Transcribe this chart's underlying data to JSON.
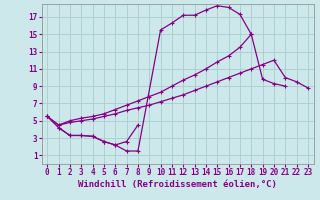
{
  "background_color": "#cce8ea",
  "grid_color": "#aacccc",
  "line_color": "#880088",
  "markersize": 2.5,
  "linewidth": 0.9,
  "xlabel": "Windchill (Refroidissement éolien,°C)",
  "xlabel_fontsize": 6.5,
  "tick_fontsize": 5.5,
  "xlim": [
    -0.5,
    23.5
  ],
  "ylim": [
    0,
    18.5
  ],
  "xticks": [
    0,
    1,
    2,
    3,
    4,
    5,
    6,
    7,
    8,
    9,
    10,
    11,
    12,
    13,
    14,
    15,
    16,
    17,
    18,
    19,
    20,
    21,
    22,
    23
  ],
  "yticks": [
    1,
    3,
    5,
    7,
    9,
    11,
    13,
    15,
    17
  ],
  "curve1_x": [
    0,
    1,
    2,
    3,
    4,
    5,
    6,
    7,
    8,
    10,
    11,
    12,
    13,
    14,
    15,
    16,
    17,
    18
  ],
  "curve1_y": [
    5.5,
    4.2,
    3.3,
    3.3,
    3.2,
    2.6,
    2.2,
    1.5,
    1.5,
    15.5,
    16.3,
    17.2,
    17.2,
    17.8,
    18.3,
    18.1,
    17.3,
    15.0
  ],
  "curve2_x": [
    1,
    2,
    3,
    4,
    5,
    6,
    7,
    8
  ],
  "curve2_y": [
    4.2,
    3.3,
    3.3,
    3.2,
    2.6,
    2.2,
    2.6,
    4.5
  ],
  "curve3_x": [
    0,
    1,
    2,
    3,
    4,
    5,
    6,
    7,
    8,
    9,
    10,
    11,
    12,
    13,
    14,
    15,
    16,
    17,
    18,
    19,
    20,
    21,
    22,
    23
  ],
  "curve3_y": [
    5.5,
    4.5,
    4.8,
    5.0,
    5.2,
    5.5,
    5.8,
    6.2,
    6.5,
    6.8,
    7.2,
    7.6,
    8.0,
    8.5,
    9.0,
    9.5,
    10.0,
    10.5,
    11.0,
    11.5,
    12.0,
    10.0,
    9.5,
    8.8
  ],
  "curve4_x": [
    0,
    1,
    2,
    3,
    4,
    5,
    6,
    7,
    8,
    9,
    10,
    11,
    12,
    13,
    14,
    15,
    16,
    17,
    18,
    19,
    20,
    21
  ],
  "curve4_y": [
    5.5,
    4.5,
    5.0,
    5.3,
    5.5,
    5.8,
    6.3,
    6.8,
    7.3,
    7.8,
    8.3,
    9.0,
    9.7,
    10.3,
    11.0,
    11.8,
    12.5,
    13.5,
    15.0,
    9.8,
    9.3,
    9.0
  ]
}
